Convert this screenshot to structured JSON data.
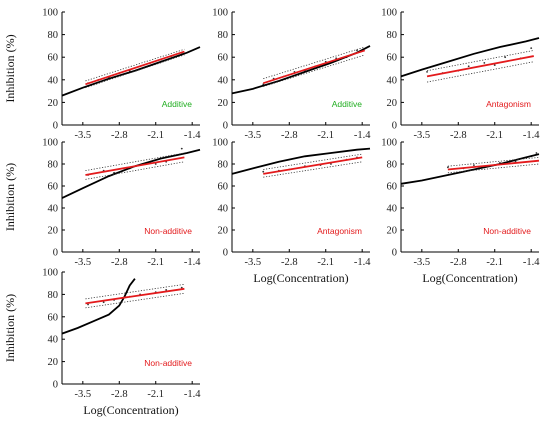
{
  "colors": {
    "model_line": "#000000",
    "fit_line": "#e31a1c",
    "ci_line": "#333333",
    "scatter": "#333333",
    "additive": "#1fad1f",
    "non_additive": "#e31a1c",
    "antagonism": "#e31a1c"
  },
  "chart_data": [
    {
      "type": "line",
      "panel": "1",
      "ylabel": "Inhibition (%)",
      "xlabel": "",
      "xlim": [
        -3.9,
        -1.25
      ],
      "ylim": [
        0,
        100
      ],
      "xticks": [
        "-3.5",
        "-2.8",
        "-2.1",
        "-1.4"
      ],
      "yticks": [
        "0",
        "20",
        "40",
        "60",
        "80",
        "100"
      ],
      "annotation": {
        "text": "Additive",
        "color": "additive"
      },
      "series": [
        {
          "role": "model",
          "x": [
            -3.9,
            -3.5,
            -3.0,
            -2.5,
            -2.0,
            -1.5,
            -1.25
          ],
          "y": [
            26,
            33,
            41,
            48,
            56,
            64,
            69
          ]
        },
        {
          "role": "fit",
          "x": [
            -3.45,
            -1.55
          ],
          "y": [
            36,
            65
          ]
        },
        {
          "role": "ci_upper",
          "x": [
            -3.45,
            -1.55
          ],
          "y": [
            39,
            67
          ]
        },
        {
          "role": "ci_lower",
          "x": [
            -3.45,
            -1.55
          ],
          "y": [
            33,
            62
          ]
        }
      ],
      "points": {
        "x": [
          -3.4,
          -3.2,
          -3.0,
          -2.8,
          -2.6,
          -2.4,
          -2.2,
          -2.0,
          -1.8,
          -1.6
        ],
        "y": [
          37,
          40,
          42,
          46,
          48,
          52,
          55,
          58,
          61,
          64
        ]
      }
    },
    {
      "type": "line",
      "panel": "2",
      "ylabel": "",
      "xlabel": "",
      "xlim": [
        -3.9,
        -1.25
      ],
      "ylim": [
        0,
        100
      ],
      "xticks": [
        "-3.5",
        "-2.8",
        "-2.1",
        "-1.4"
      ],
      "yticks": [
        "0",
        "20",
        "40",
        "60",
        "80",
        "100"
      ],
      "annotation": {
        "text": "Additive",
        "color": "additive"
      },
      "series": [
        {
          "role": "model",
          "x": [
            -3.9,
            -3.5,
            -3.0,
            -2.5,
            -2.0,
            -1.5,
            -1.25
          ],
          "y": [
            28,
            32,
            39,
            47,
            55,
            64,
            70
          ]
        },
        {
          "role": "fit",
          "x": [
            -3.3,
            -1.35
          ],
          "y": [
            37,
            66
          ]
        },
        {
          "role": "ci_upper",
          "x": [
            -3.3,
            -1.35
          ],
          "y": [
            41,
            69
          ]
        },
        {
          "role": "ci_lower",
          "x": [
            -3.3,
            -1.35
          ],
          "y": [
            34,
            62
          ]
        }
      ],
      "points": {
        "x": [
          -3.3,
          -3.1,
          -2.9,
          -2.7,
          -2.5,
          -2.3,
          -2.1,
          -1.9,
          -1.7,
          -1.5
        ],
        "y": [
          36,
          41,
          43,
          47,
          48,
          52,
          56,
          59,
          60,
          66
        ]
      }
    },
    {
      "type": "line",
      "panel": "3",
      "ylabel": "",
      "xlabel": "",
      "xlim": [
        -3.9,
        -1.25
      ],
      "ylim": [
        0,
        100
      ],
      "xticks": [
        "-3.5",
        "-2.8",
        "-2.1",
        "-1.4"
      ],
      "yticks": [
        "0",
        "20",
        "40",
        "60",
        "80",
        "100"
      ],
      "annotation": {
        "text": "Antagonism",
        "color": "antagonism"
      },
      "series": [
        {
          "role": "model",
          "x": [
            -3.9,
            -3.5,
            -3.0,
            -2.5,
            -2.0,
            -1.5,
            -1.25
          ],
          "y": [
            43,
            49,
            56,
            63,
            69,
            74,
            77
          ]
        },
        {
          "role": "fit",
          "x": [
            -3.4,
            -1.35
          ],
          "y": [
            43,
            61
          ]
        },
        {
          "role": "ci_upper",
          "x": [
            -3.4,
            -1.35
          ],
          "y": [
            48,
            66
          ]
        },
        {
          "role": "ci_lower",
          "x": [
            -3.4,
            -1.35
          ],
          "y": [
            38,
            56
          ]
        }
      ],
      "points": {
        "x": [
          -3.4,
          -3.1,
          -2.8,
          -2.6,
          -2.3,
          -2.1,
          -1.9,
          -1.6,
          -1.4
        ],
        "y": [
          47,
          46,
          48,
          52,
          55,
          53,
          60,
          59,
          68
        ]
      }
    },
    {
      "type": "line",
      "panel": "4",
      "ylabel": "Inhibition (%)",
      "xlabel": "",
      "xlim": [
        -3.9,
        -1.25
      ],
      "ylim": [
        0,
        100
      ],
      "xticks": [
        "-3.5",
        "-2.8",
        "-2.1",
        "-1.4"
      ],
      "yticks": [
        "0",
        "20",
        "40",
        "60",
        "80",
        "100"
      ],
      "annotation": {
        "text": "Non-additive",
        "color": "non_additive"
      },
      "series": [
        {
          "role": "model",
          "x": [
            -3.9,
            -3.5,
            -3.0,
            -2.5,
            -2.0,
            -1.5,
            -1.25
          ],
          "y": [
            49,
            58,
            69,
            78,
            85,
            90,
            93
          ]
        },
        {
          "role": "fit",
          "x": [
            -3.45,
            -1.55
          ],
          "y": [
            70,
            86
          ]
        },
        {
          "role": "ci_upper",
          "x": [
            -3.45,
            -1.55
          ],
          "y": [
            74,
            90
          ]
        },
        {
          "role": "ci_lower",
          "x": [
            -3.45,
            -1.55
          ],
          "y": [
            66,
            82
          ]
        }
      ],
      "points": {
        "x": [
          -3.4,
          -3.1,
          -2.9,
          -2.6,
          -2.4,
          -2.1,
          -1.9,
          -1.6
        ],
        "y": [
          70,
          74,
          72,
          76,
          79,
          80,
          82,
          94
        ]
      }
    },
    {
      "type": "line",
      "panel": "5",
      "ylabel": "",
      "xlabel": "Log(Concentration)",
      "xlim": [
        -3.9,
        -1.25
      ],
      "ylim": [
        0,
        100
      ],
      "xticks": [
        "-3.5",
        "-2.8",
        "-2.1",
        "-1.4"
      ],
      "yticks": [
        "0",
        "20",
        "40",
        "60",
        "80",
        "100"
      ],
      "annotation": {
        "text": "Antagonism",
        "color": "antagonism"
      },
      "series": [
        {
          "role": "model",
          "x": [
            -3.9,
            -3.5,
            -3.0,
            -2.5,
            -2.0,
            -1.5,
            -1.25
          ],
          "y": [
            71,
            76,
            82,
            87,
            90,
            93,
            94
          ]
        },
        {
          "role": "fit",
          "x": [
            -3.3,
            -1.4
          ],
          "y": [
            71,
            86
          ]
        },
        {
          "role": "ci_upper",
          "x": [
            -3.3,
            -1.4
          ],
          "y": [
            75,
            89
          ]
        },
        {
          "role": "ci_lower",
          "x": [
            -3.3,
            -1.4
          ],
          "y": [
            68,
            82
          ]
        }
      ],
      "points": {
        "x": [
          -3.3,
          -3.0,
          -2.8,
          -2.5,
          -2.2,
          -2.0,
          -1.7,
          -1.5
        ],
        "y": [
          73,
          74,
          75,
          78,
          79,
          80,
          84,
          86
        ]
      }
    },
    {
      "type": "line",
      "panel": "6",
      "ylabel": "",
      "xlabel": "Log(Concentration)",
      "xlim": [
        -3.9,
        -1.25
      ],
      "ylim": [
        0,
        100
      ],
      "xticks": [
        "-3.5",
        "-2.8",
        "-2.1",
        "-1.4"
      ],
      "yticks": [
        "0",
        "20",
        "40",
        "60",
        "80",
        "100"
      ],
      "annotation": {
        "text": "Non-additive",
        "color": "non_additive"
      },
      "series": [
        {
          "role": "model",
          "x": [
            -3.9,
            -3.5,
            -3.0,
            -2.5,
            -2.0,
            -1.5,
            -1.25
          ],
          "y": [
            62,
            65,
            70,
            75,
            80,
            86,
            89
          ]
        },
        {
          "role": "fit",
          "x": [
            -3.0,
            -1.25
          ],
          "y": [
            75,
            83
          ]
        },
        {
          "role": "ci_upper",
          "x": [
            -3.0,
            -1.25
          ],
          "y": [
            78,
            86
          ]
        },
        {
          "role": "ci_lower",
          "x": [
            -3.0,
            -1.25
          ],
          "y": [
            72,
            80
          ]
        }
      ],
      "points": {
        "x": [
          -3.0,
          -2.7,
          -2.5,
          -2.2,
          -2.0,
          -1.7,
          -1.4,
          -1.3
        ],
        "y": [
          77,
          76,
          79,
          78,
          81,
          82,
          87,
          90
        ]
      }
    },
    {
      "type": "line",
      "panel": "7",
      "ylabel": "Inhibition (%)",
      "xlabel": "Log(Concentration)",
      "xlim": [
        -3.9,
        -1.25
      ],
      "ylim": [
        0,
        100
      ],
      "xticks": [
        "-3.5",
        "-2.8",
        "-2.1",
        "-1.4"
      ],
      "yticks": [
        "0",
        "20",
        "40",
        "60",
        "80",
        "100"
      ],
      "annotation": {
        "text": "Non-additive",
        "color": "non_additive"
      },
      "series": [
        {
          "role": "model",
          "x": [
            -3.9,
            -3.6,
            -3.3,
            -3.0,
            -2.8,
            -2.7,
            -2.6,
            -2.5
          ],
          "y": [
            45,
            50,
            56,
            62,
            70,
            78,
            88,
            94
          ]
        },
        {
          "role": "fit",
          "x": [
            -3.45,
            -1.55
          ],
          "y": [
            72,
            85
          ]
        },
        {
          "role": "ci_upper",
          "x": [
            -3.45,
            -1.55
          ],
          "y": [
            76,
            89
          ]
        },
        {
          "role": "ci_lower",
          "x": [
            -3.45,
            -1.55
          ],
          "y": [
            68,
            81
          ]
        }
      ],
      "points": {
        "x": [
          -3.4,
          -3.1,
          -2.9,
          -2.6,
          -2.4,
          -2.1,
          -1.9,
          -1.6
        ],
        "y": [
          71,
          73,
          75,
          78,
          80,
          82,
          84,
          86
        ]
      }
    }
  ]
}
